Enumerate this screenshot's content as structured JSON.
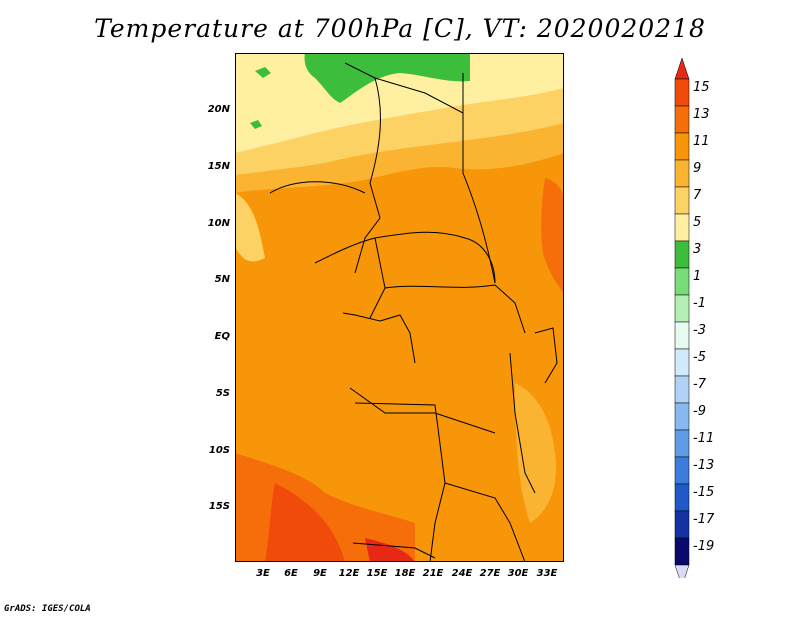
{
  "title": "Temperature at 700hPa [C], VT: 2020020218",
  "credit": "GrADS: IGES/COLA",
  "map": {
    "region": "Central Africa",
    "variable": "Temperature at 700hPa",
    "units": "C",
    "lon_range": [
      0,
      34.5
    ],
    "lat_range": [
      -20,
      25
    ],
    "y_ticks": [
      "20N",
      "15N",
      "10N",
      "5N",
      "EQ",
      "5S",
      "10S",
      "15S"
    ],
    "x_ticks": [
      "3E",
      "6E",
      "9E",
      "12E",
      "15E",
      "18E",
      "21E",
      "24E",
      "27E",
      "30E",
      "33E"
    ]
  },
  "colorbar": {
    "labels": [
      "15",
      "13",
      "11",
      "9",
      "7",
      "5",
      "3",
      "1",
      "-1",
      "-3",
      "-5",
      "-7",
      "-9",
      "-11",
      "-13",
      "-15",
      "-17",
      "-19"
    ],
    "colors": [
      "#e62814",
      "#f04b0a",
      "#f56e0a",
      "#f8960a",
      "#fbb432",
      "#fdd264",
      "#fef0a0",
      "#3cbe3c",
      "#78dc78",
      "#b4f0b4",
      "#e6faf0",
      "#d2ebfa",
      "#afd2f5",
      "#87b9f0",
      "#5f9be6",
      "#3c7ddc",
      "#1e5ac8",
      "#1432a0",
      "#0a0a6e"
    ],
    "top_arrow_color": "#e62814",
    "bottom_arrow_color": "#dcdcf8"
  }
}
